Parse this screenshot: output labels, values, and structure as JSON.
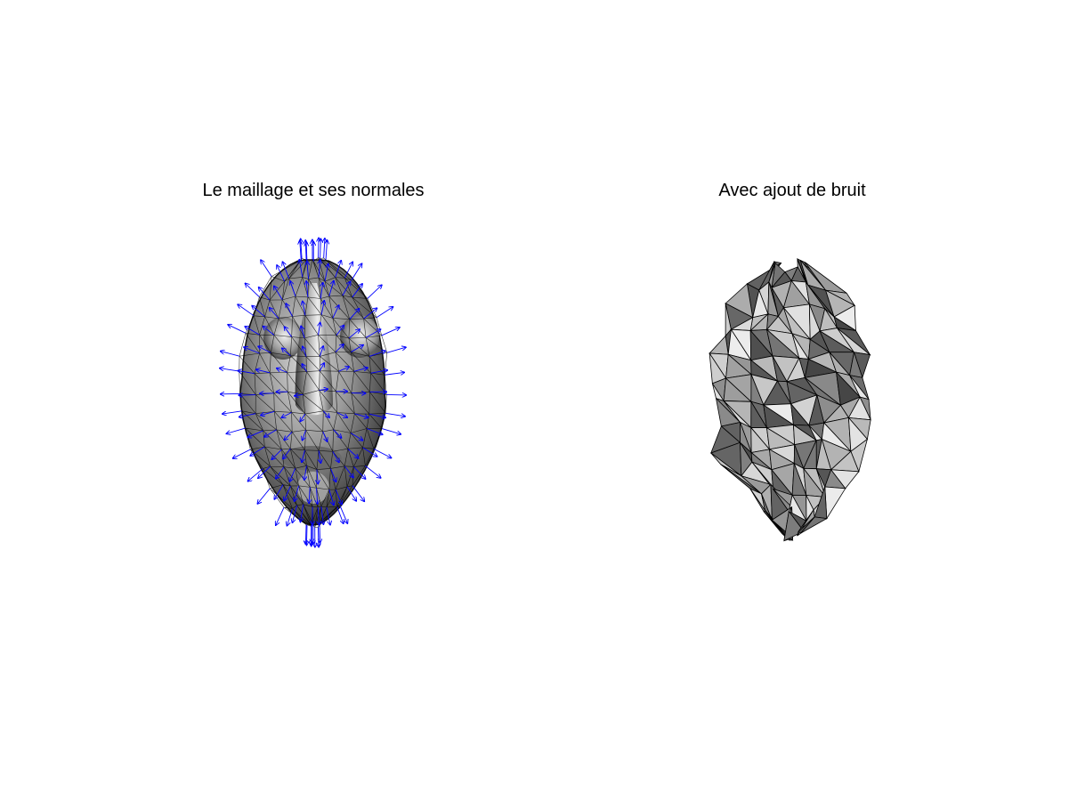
{
  "figure": {
    "left_panel": {
      "title": "Le maillage et ses normales"
    },
    "right_panel": {
      "title": "Avec ajout de bruit"
    }
  },
  "colors": {
    "background": "#ffffff",
    "mesh_surface": "#8a8a8a",
    "mesh_edges": "#000000",
    "normals": "#0000ff"
  }
}
